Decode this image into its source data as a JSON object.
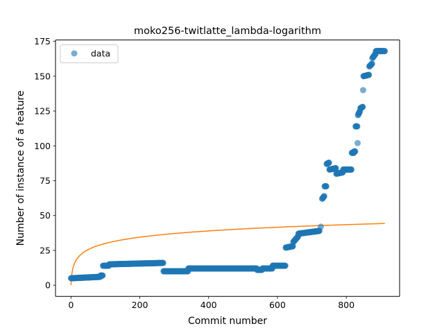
{
  "chart_data": {
    "type": "scatter",
    "title": "moko256-twitlatte_lambda-logarithm",
    "xlabel": "Commit number",
    "ylabel": "Number of instance of a feature",
    "xlim": [
      -45,
      955
    ],
    "ylim": [
      -8,
      176
    ],
    "xticks": [
      0,
      200,
      400,
      600,
      800
    ],
    "yticks": [
      0,
      25,
      50,
      75,
      100,
      125,
      150,
      175
    ],
    "grid": false,
    "legend": {
      "placement": "top-left",
      "entries": [
        "data"
      ]
    },
    "colors": {
      "data": "#1f77b4",
      "fit": "#ff7f0e"
    },
    "series": [
      {
        "name": "data",
        "kind": "scatter",
        "segments": [
          [
            0,
            85,
            5,
            6
          ],
          [
            86,
            92,
            7,
            7
          ],
          [
            93,
            110,
            14,
            14
          ],
          [
            111,
            268,
            15,
            16
          ],
          [
            269,
            340,
            10,
            10
          ],
          [
            341,
            540,
            12,
            12
          ],
          [
            541,
            555,
            11,
            11
          ],
          [
            556,
            585,
            12,
            12
          ],
          [
            586,
            623,
            14,
            14
          ],
          [
            624,
            645,
            27,
            28
          ],
          [
            646,
            660,
            31,
            35
          ],
          [
            661,
            722,
            37,
            39
          ],
          [
            726,
            726,
            42,
            42
          ],
          [
            730,
            736,
            62,
            64
          ],
          [
            737,
            742,
            71,
            71
          ],
          [
            743,
            750,
            87,
            88
          ],
          [
            751,
            770,
            83,
            84
          ],
          [
            771,
            790,
            80,
            81
          ],
          [
            791,
            815,
            83,
            83
          ],
          [
            816,
            822,
            95,
            95
          ],
          [
            823,
            826,
            96,
            96
          ],
          [
            827,
            832,
            114,
            114
          ],
          [
            833,
            833,
            102,
            102
          ],
          [
            834,
            840,
            122,
            125
          ],
          [
            841,
            848,
            127,
            128
          ],
          [
            849,
            849,
            140,
            140
          ],
          [
            850,
            866,
            150,
            151
          ],
          [
            867,
            875,
            157,
            159
          ],
          [
            876,
            885,
            163,
            166
          ],
          [
            886,
            912,
            168,
            168
          ]
        ]
      },
      {
        "name": "",
        "kind": "line",
        "model": "y = 6.5 * ln(x + 1)",
        "x_range": [
          0,
          912
        ]
      }
    ]
  }
}
